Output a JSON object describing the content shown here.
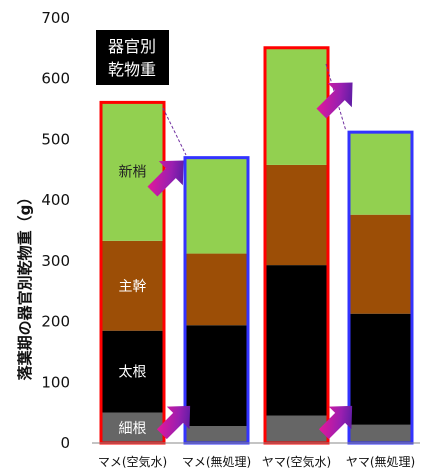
{
  "chart_data": {
    "type": "bar",
    "stacked": true,
    "ylabel": "落葉期の器官別乾物重（g）",
    "ylim": [
      0,
      700
    ],
    "yticks": [
      0,
      100,
      200,
      300,
      400,
      500,
      600,
      700
    ],
    "categories": [
      "マメ(空気水)",
      "マメ(無処理)",
      "ヤマ(空気水)",
      "ヤマ(無処理)"
    ],
    "series": [
      {
        "name": "細根",
        "color": "#666666",
        "values": [
          50,
          28,
          45,
          30
        ]
      },
      {
        "name": "太根",
        "color": "#000000",
        "values": [
          135,
          166,
          248,
          183
        ]
      },
      {
        "name": "主幹",
        "color": "#9c4e06",
        "values": [
          148,
          118,
          165,
          163
        ]
      },
      {
        "name": "新梢",
        "color": "#92d050",
        "values": [
          228,
          158,
          193,
          136
        ]
      }
    ],
    "totals": [
      561,
      470,
      651,
      512
    ],
    "outline_colors": [
      "#ff0000",
      "#3333ff",
      "#ff0000",
      "#3333ff"
    ],
    "legend_box": {
      "line1": "器官別",
      "line2": "乾物重"
    }
  }
}
